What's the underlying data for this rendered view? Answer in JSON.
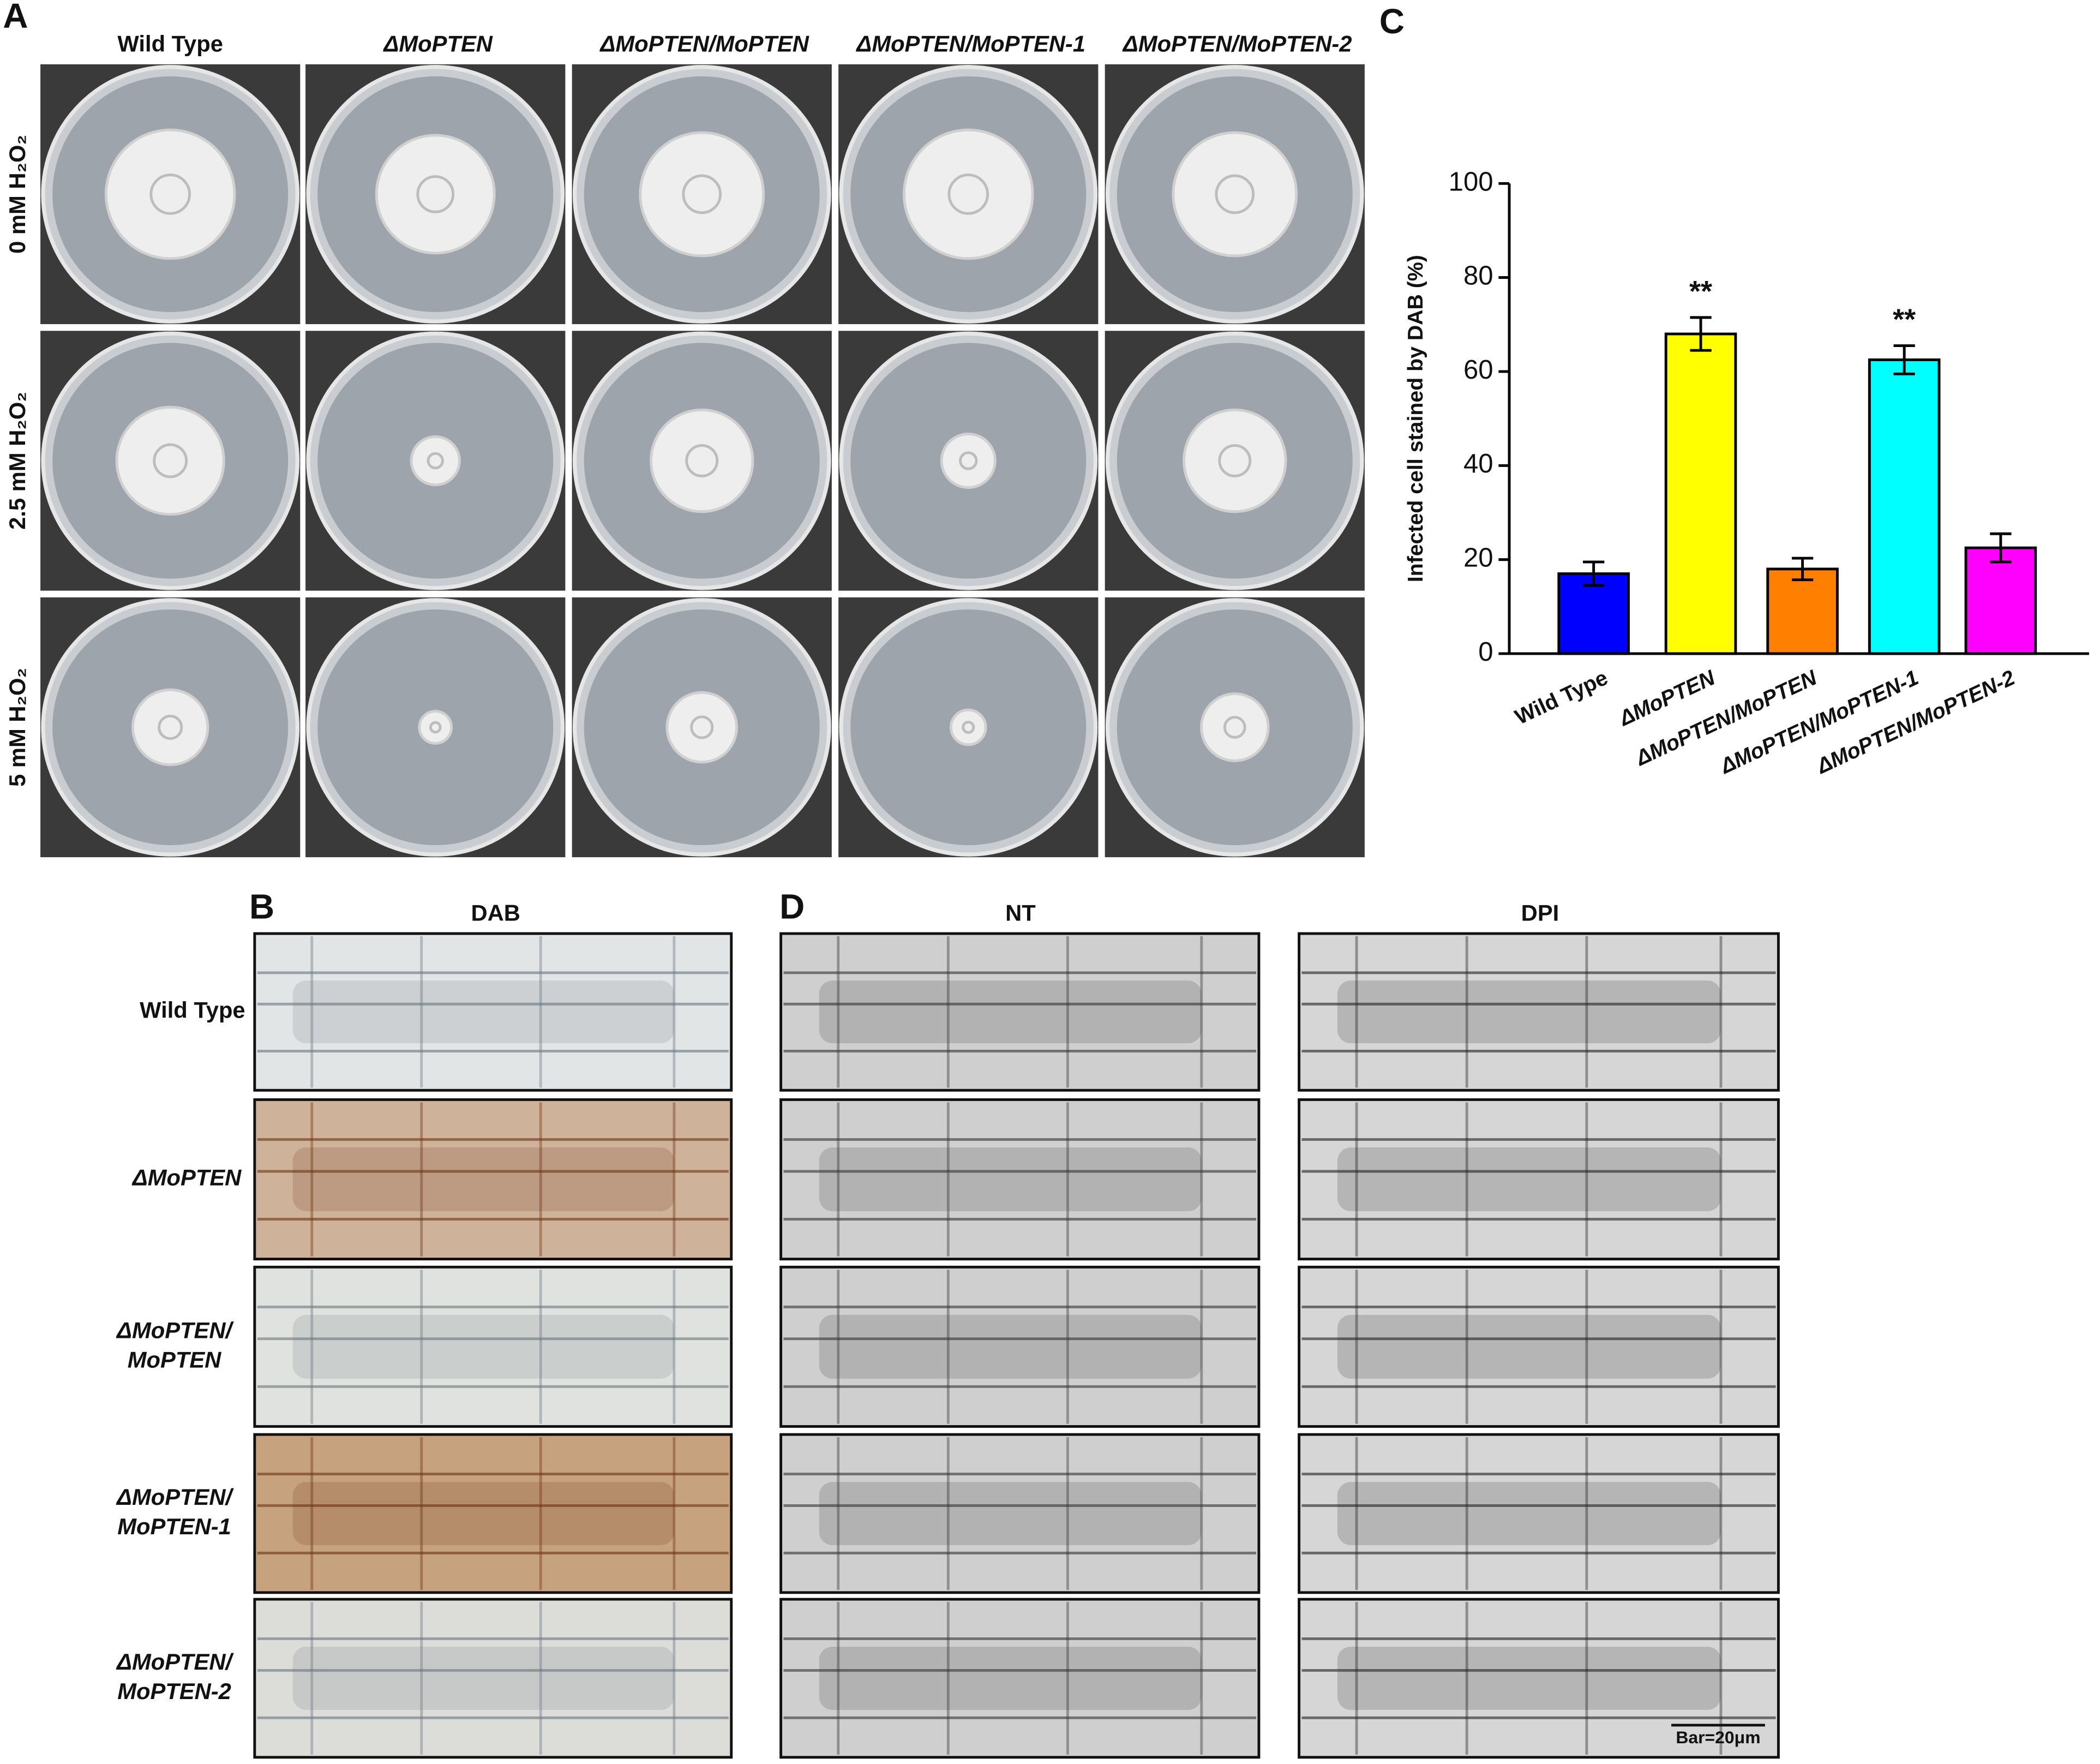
{
  "panel_a": {
    "label": "A",
    "columns": [
      "Wild Type",
      "ΔMoPTEN",
      "ΔMoPTEN/MoPTEN",
      "ΔMoPTEN/MoPTEN-1",
      "ΔMoPTEN/MoPTEN-2"
    ],
    "rows": [
      "0 mM H₂O₂",
      "2.5 mM H₂O₂",
      "5 mM H₂O₂"
    ]
  },
  "chart_data": {
    "type": "bar",
    "panel_label": "C",
    "ylabel": "Infected cell stained by DAB (%)",
    "categories": [
      "Wild Type",
      "ΔMoPTEN",
      "ΔMoPTEN/MoPTEN",
      "ΔMoPTEN/MoPTEN-1",
      "ΔMoPTEN/MoPTEN-2"
    ],
    "values": [
      17,
      68,
      18,
      62.5,
      22.5
    ],
    "errors": [
      2.5,
      3.5,
      2.3,
      3,
      3
    ],
    "significance": [
      null,
      "**",
      null,
      "**",
      null
    ],
    "colors": [
      "#0000ff",
      "#ffff00",
      "#ff7f00",
      "#00ffff",
      "#ff00ff"
    ],
    "ylim": [
      0,
      100
    ],
    "yticks": [
      0,
      20,
      40,
      60,
      80,
      100
    ]
  },
  "panel_b": {
    "label": "B",
    "title": "DAB",
    "rows": [
      [
        "Wild Type"
      ],
      [
        "ΔMoPTEN"
      ],
      [
        "ΔMoPTEN/",
        "MoPTEN"
      ],
      [
        "ΔMoPTEN/",
        "MoPTEN-1"
      ],
      [
        "ΔMoPTEN/",
        "MoPTEN-2"
      ]
    ]
  },
  "panel_d": {
    "label": "D",
    "columns": [
      "NT",
      "DPI"
    ],
    "scale_bar": "Bar=20μm"
  }
}
